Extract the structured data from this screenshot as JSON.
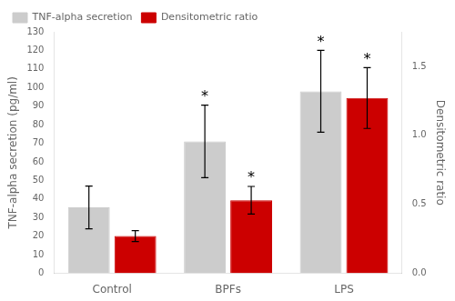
{
  "chart_data": {
    "type": "bar",
    "categories": [
      "Control",
      "BPFs",
      "LPS"
    ],
    "series": [
      {
        "name": "TNF-alpha secretion",
        "color": "#cccccc",
        "values": [
          35.5,
          71.0,
          98.0
        ],
        "errors": [
          11.5,
          19.5,
          22.0
        ],
        "axis": "y"
      },
      {
        "name": "Densitometric ratio",
        "color": "#cc0000",
        "values": [
          0.27,
          0.53,
          1.27
        ],
        "errors": [
          0.04,
          0.1,
          0.22
        ],
        "axis": "y2"
      }
    ],
    "ylabel": "TNF-alpha secretion (pg/ml)",
    "y2label": "Densitometric ratio",
    "ylim": [
      0,
      130
    ],
    "yticks": [
      0,
      10,
      20,
      30,
      40,
      50,
      60,
      70,
      80,
      90,
      100,
      110,
      120,
      130
    ],
    "y2lim": [
      0.0,
      1.75
    ],
    "y2ticks": [
      {
        "value": 0,
        "label": "0.0"
      },
      0.5,
      {
        "value": 1,
        "label": "1.0"
      },
      1.5
    ],
    "annotations": [
      {
        "text": "*",
        "x": "BPFs",
        "series": "TNF-alpha secretion"
      },
      {
        "text": "*",
        "x": "LPS",
        "series": "TNF-alpha secretion"
      },
      {
        "text": "*",
        "x": "BPFs",
        "series": "Densitometric ratio"
      },
      {
        "text": "*",
        "x": "LPS",
        "series": "Densitometric ratio"
      }
    ],
    "legend": "upper left",
    "grid": false
  }
}
